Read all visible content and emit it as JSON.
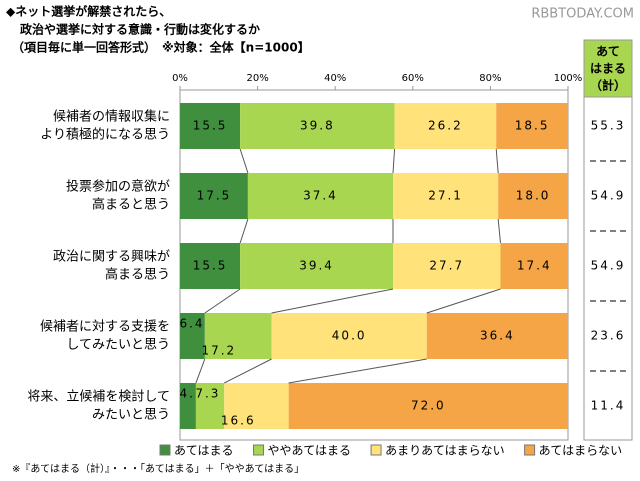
{
  "chart_data": {
    "type": "stacked-barh",
    "title": [
      "◆ネット選挙が解禁されたら、",
      "政治や選挙に対する意識・行動は変化するか",
      "（項目毎に単一回答形式）　※対象：全体【n=1000】"
    ],
    "watermark": "RBBTODAY.COM",
    "categories": [
      [
        "候補者の情報収集に",
        "より積極的になる思う"
      ],
      [
        "投票参加の意欲が",
        "高まると思う"
      ],
      [
        "政治に関する興味が",
        "高まる思う"
      ],
      [
        "候補者に対する支援を",
        "してみたいと思う"
      ],
      [
        "将来、立候補を検討して",
        "みたいと思う"
      ]
    ],
    "series": [
      {
        "name": "あてはまる",
        "color": "#3f8f3f",
        "values": [
          15.5,
          17.5,
          15.5,
          6.4,
          4.1
        ]
      },
      {
        "name": "ややあてはまる",
        "color": "#a9d650",
        "values": [
          39.8,
          37.4,
          39.4,
          17.2,
          7.3
        ]
      },
      {
        "name": "あまりあてはまらない",
        "color": "#ffe37a",
        "values": [
          26.2,
          27.1,
          27.7,
          40.0,
          16.6
        ]
      },
      {
        "name": "あてはまらない",
        "color": "#f5a546",
        "values": [
          18.5,
          18.0,
          17.4,
          36.4,
          72.0
        ]
      }
    ],
    "value_labels": [
      [
        "15.5",
        "17.5",
        "15.5",
        "6.4",
        "4.1"
      ],
      [
        "39.8",
        "37.4",
        "39.4",
        "17.2",
        "7.3"
      ],
      [
        "26.2",
        "27.1",
        "27.7",
        "40.0",
        "16.6"
      ],
      [
        "18.5",
        "18.0",
        "17.4",
        "36.4",
        "72.0"
      ]
    ],
    "xlim": [
      0,
      100
    ],
    "xticks": [
      {
        "value": 0,
        "label": "0%"
      },
      {
        "value": 20,
        "label": "20%"
      },
      {
        "value": 40,
        "label": "40%"
      },
      {
        "value": 60,
        "label": "60%"
      },
      {
        "value": 80,
        "label": "80%"
      },
      {
        "value": 100,
        "label": "100%"
      }
    ],
    "side_column": {
      "title": [
        "あて",
        "はまる",
        "（計）"
      ],
      "values": [
        55.3,
        54.9,
        54.9,
        23.6,
        11.4
      ],
      "color": "#a9d650"
    },
    "footnote": "※『あてはまる（計）』・・・「あてはまる」＋「ややあてはまる」"
  }
}
